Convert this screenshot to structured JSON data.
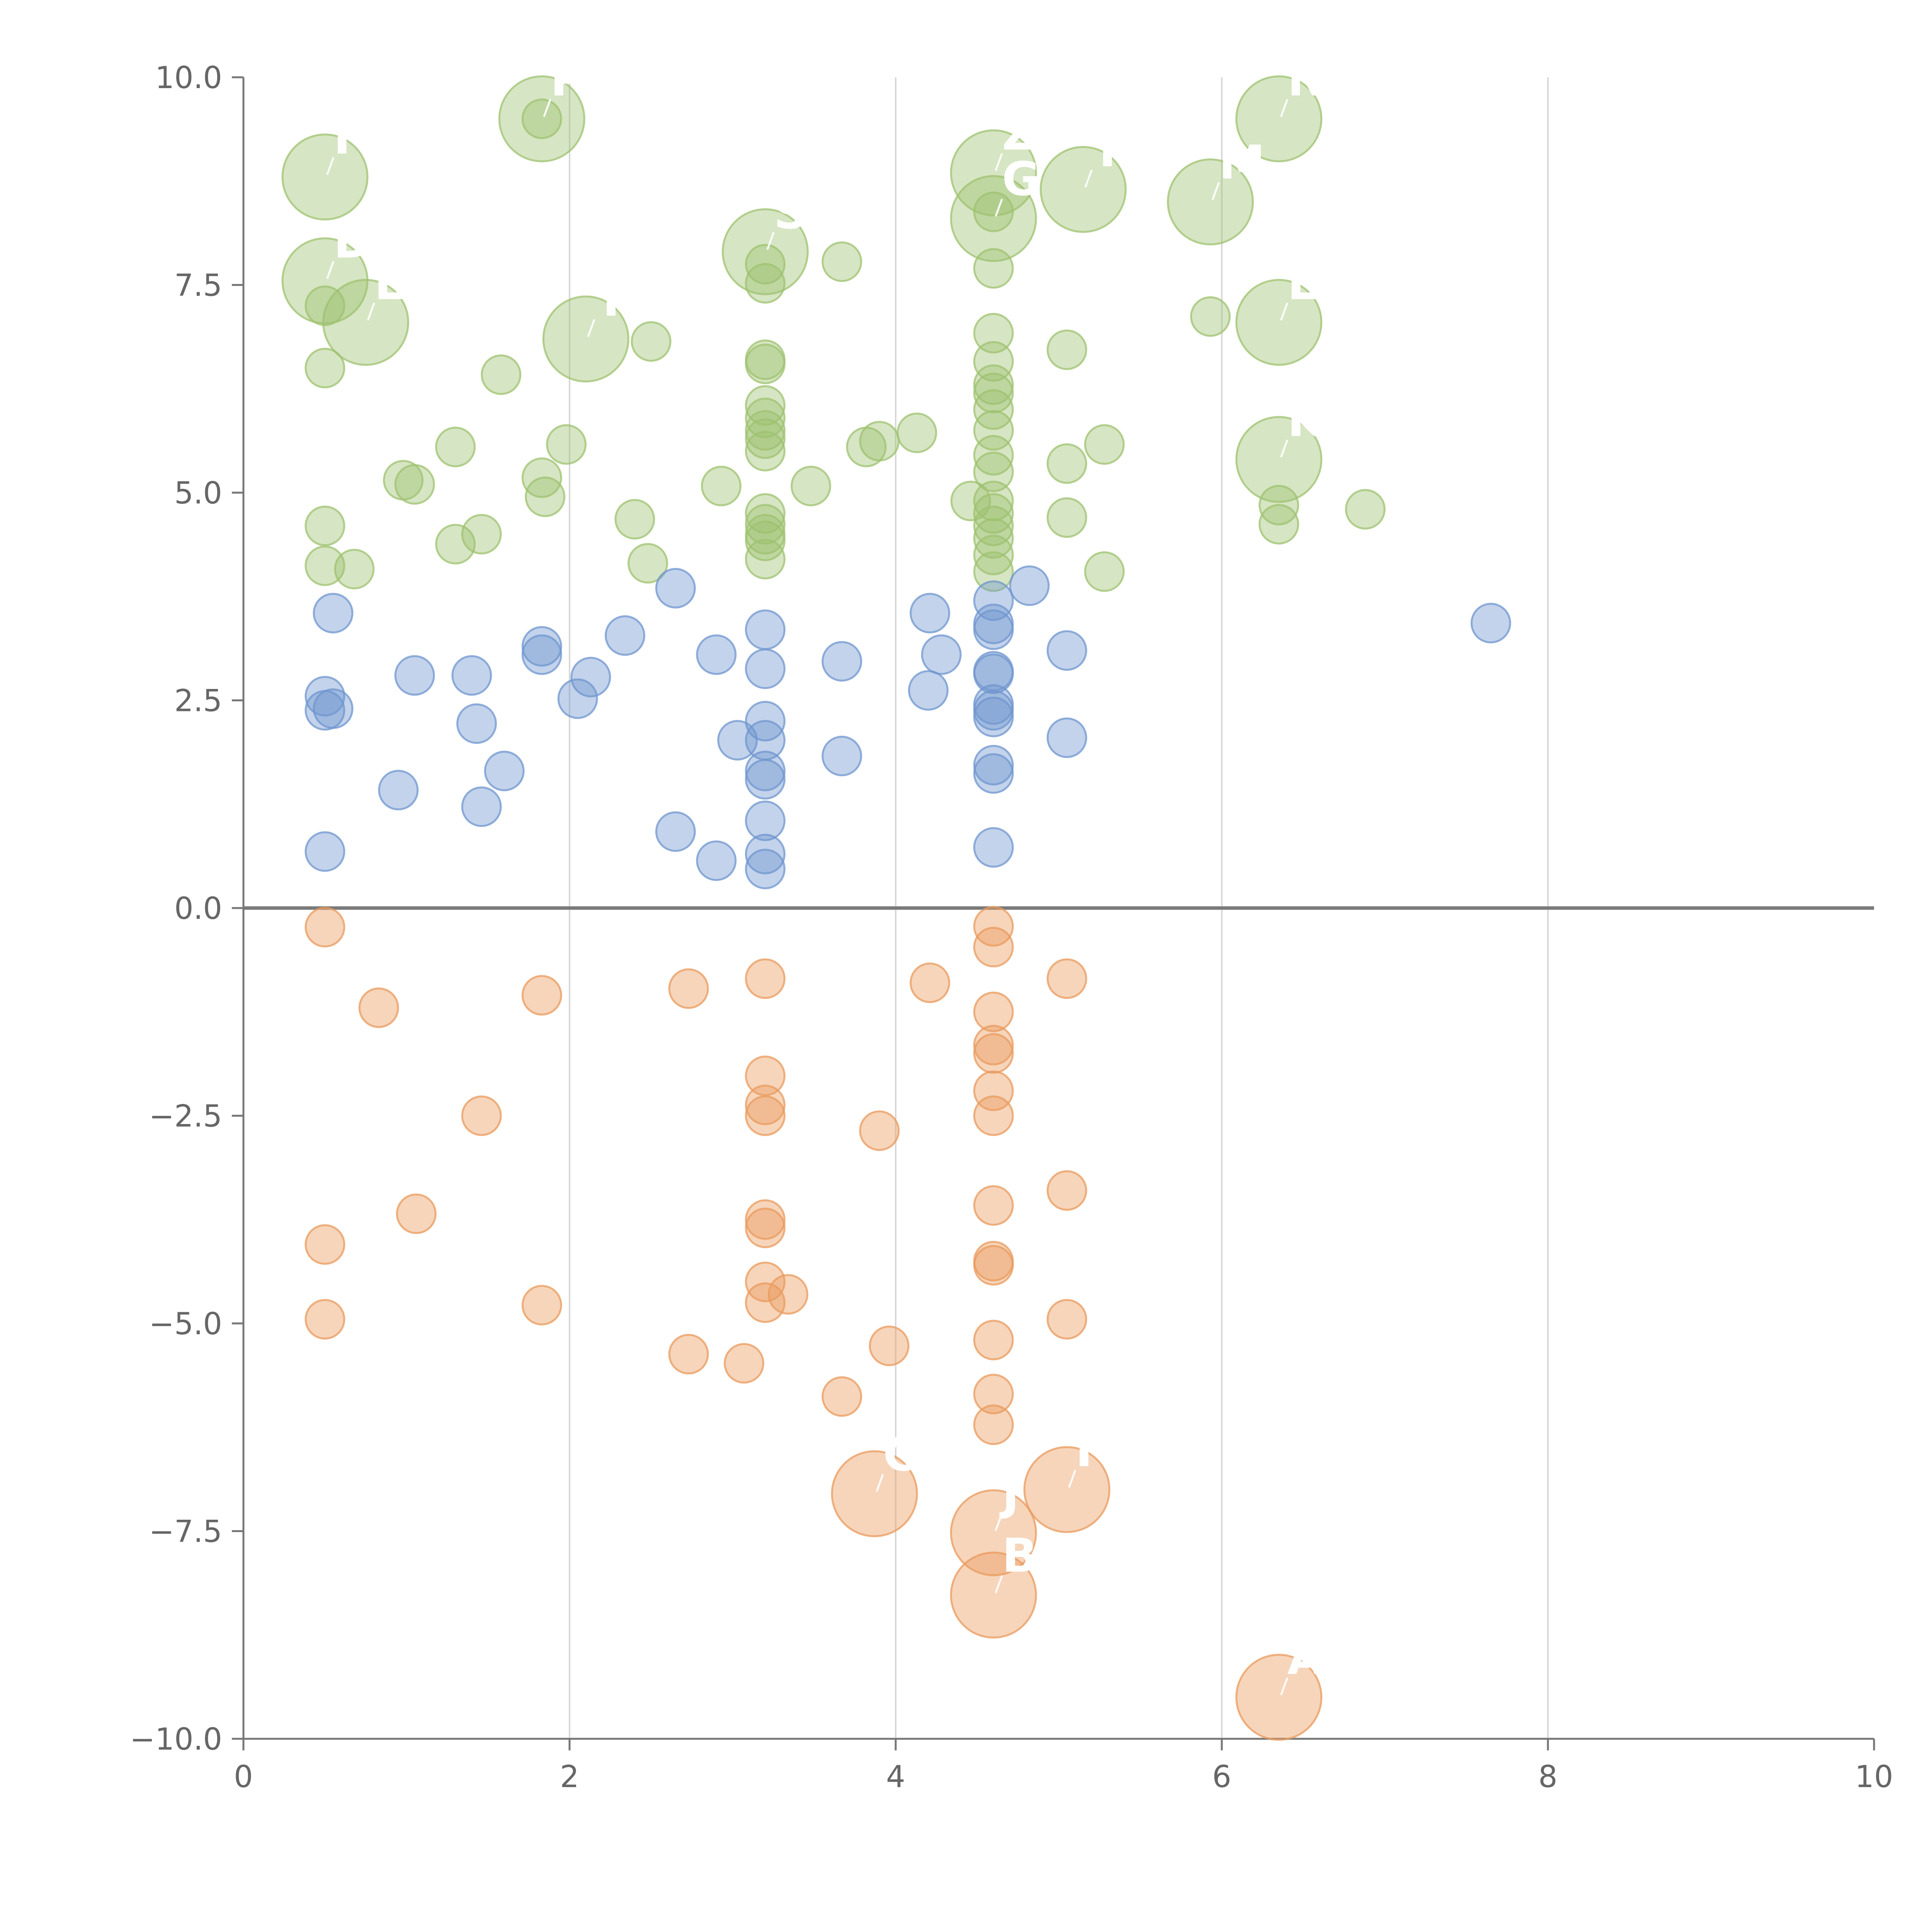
{
  "chart_data": {
    "type": "scatter",
    "title": "",
    "xlabel": "",
    "ylabel": "",
    "xlim": [
      0,
      10
    ],
    "ylim": [
      -10,
      10
    ],
    "x_ticks": [
      0,
      2,
      4,
      6,
      8,
      10
    ],
    "y_ticks": [
      -10,
      -7.5,
      -5,
      -2.5,
      0,
      2.5,
      5,
      7.5,
      10
    ],
    "x_tick_labels": [
      "0",
      "2",
      "4",
      "6",
      "8",
      "10"
    ],
    "y_tick_labels": [
      "−10.0",
      "−7.5",
      "−5.0",
      "−2.5",
      "0.0",
      "2.5",
      "5.0",
      "7.5",
      "10.0"
    ],
    "grid": "vertical",
    "zero_line": 0,
    "legend": "none",
    "colors": {
      "green": "#9dc26f",
      "blue": "#6f95cf",
      "orange": "#e99a5c",
      "text": "#666666",
      "axis": "#777777",
      "grid": "#d8d8d8"
    },
    "series": [
      {
        "name": "green",
        "color": "#9dc26f",
        "points": [
          {
            "x": 0.5,
            "y": 8.8,
            "s": 2.2,
            "label": "F"
          },
          {
            "x": 1.83,
            "y": 9.5,
            "s": 2.2,
            "label": "P"
          },
          {
            "x": 1.83,
            "y": 9.5,
            "s": 1
          },
          {
            "x": 0.5,
            "y": 7.55,
            "s": 2.2,
            "label": "D"
          },
          {
            "x": 0.75,
            "y": 7.05,
            "s": 2.2,
            "label": "E"
          },
          {
            "x": 0.5,
            "y": 7.25,
            "s": 1
          },
          {
            "x": 2.1,
            "y": 6.85,
            "s": 2.2,
            "label": "Y"
          },
          {
            "x": 3.2,
            "y": 7.9,
            "s": 2.2,
            "label": "S"
          },
          {
            "x": 4.6,
            "y": 8.85,
            "s": 2.2,
            "label": "Z"
          },
          {
            "x": 4.6,
            "y": 8.3,
            "s": 2.2,
            "label": "G"
          },
          {
            "x": 5.15,
            "y": 8.65,
            "s": 2.2,
            "label": "T"
          },
          {
            "x": 5.93,
            "y": 8.5,
            "s": 2.2,
            "label": "M"
          },
          {
            "x": 6.35,
            "y": 9.5,
            "s": 2.2,
            "label": "N"
          },
          {
            "x": 6.35,
            "y": 7.05,
            "s": 2.2,
            "label": "L"
          },
          {
            "x": 6.35,
            "y": 5.4,
            "s": 2.2,
            "label": "K"
          },
          {
            "x": 0.5,
            "y": 6.5,
            "s": 1
          },
          {
            "x": 0.5,
            "y": 4.6,
            "s": 1
          },
          {
            "x": 0.5,
            "y": 4.12,
            "s": 1
          },
          {
            "x": 0.68,
            "y": 4.08,
            "s": 1
          },
          {
            "x": 0.98,
            "y": 5.15,
            "s": 1
          },
          {
            "x": 1.05,
            "y": 5.1,
            "s": 1
          },
          {
            "x": 1.3,
            "y": 5.55,
            "s": 1
          },
          {
            "x": 1.3,
            "y": 4.38,
            "s": 1
          },
          {
            "x": 1.46,
            "y": 4.5,
            "s": 1
          },
          {
            "x": 1.58,
            "y": 6.42,
            "s": 1
          },
          {
            "x": 1.83,
            "y": 5.18,
            "s": 1
          },
          {
            "x": 1.85,
            "y": 4.95,
            "s": 1
          },
          {
            "x": 1.98,
            "y": 5.58,
            "s": 1
          },
          {
            "x": 2.4,
            "y": 4.68,
            "s": 1
          },
          {
            "x": 2.48,
            "y": 4.15,
            "s": 1
          },
          {
            "x": 2.5,
            "y": 6.82,
            "s": 1
          },
          {
            "x": 2.93,
            "y": 5.08,
            "s": 1
          },
          {
            "x": 3.2,
            "y": 7.75,
            "s": 1
          },
          {
            "x": 3.2,
            "y": 7.52,
            "s": 1
          },
          {
            "x": 3.2,
            "y": 6.6,
            "s": 1
          },
          {
            "x": 3.2,
            "y": 6.55,
            "s": 1
          },
          {
            "x": 3.2,
            "y": 6.05,
            "s": 1
          },
          {
            "x": 3.2,
            "y": 5.9,
            "s": 1
          },
          {
            "x": 3.2,
            "y": 5.75,
            "s": 1
          },
          {
            "x": 3.2,
            "y": 5.65,
            "s": 1
          },
          {
            "x": 3.2,
            "y": 5.5,
            "s": 1
          },
          {
            "x": 3.2,
            "y": 4.75,
            "s": 1
          },
          {
            "x": 3.2,
            "y": 4.62,
            "s": 1
          },
          {
            "x": 3.2,
            "y": 4.5,
            "s": 1
          },
          {
            "x": 3.2,
            "y": 4.42,
            "s": 1
          },
          {
            "x": 3.2,
            "y": 4.2,
            "s": 1
          },
          {
            "x": 3.48,
            "y": 5.08,
            "s": 1
          },
          {
            "x": 3.67,
            "y": 7.78,
            "s": 1
          },
          {
            "x": 3.82,
            "y": 5.55,
            "s": 1
          },
          {
            "x": 3.9,
            "y": 5.62,
            "s": 1
          },
          {
            "x": 4.13,
            "y": 5.72,
            "s": 1
          },
          {
            "x": 4.46,
            "y": 4.9,
            "s": 1
          },
          {
            "x": 4.6,
            "y": 8.38,
            "s": 1
          },
          {
            "x": 4.6,
            "y": 7.7,
            "s": 1
          },
          {
            "x": 4.6,
            "y": 6.92,
            "s": 1
          },
          {
            "x": 4.6,
            "y": 6.58,
            "s": 1
          },
          {
            "x": 4.6,
            "y": 6.3,
            "s": 1
          },
          {
            "x": 4.6,
            "y": 6.2,
            "s": 1
          },
          {
            "x": 4.6,
            "y": 6.0,
            "s": 1
          },
          {
            "x": 4.6,
            "y": 5.75,
            "s": 1
          },
          {
            "x": 4.6,
            "y": 5.45,
            "s": 1
          },
          {
            "x": 4.6,
            "y": 5.25,
            "s": 1
          },
          {
            "x": 4.6,
            "y": 4.9,
            "s": 1
          },
          {
            "x": 4.6,
            "y": 4.75,
            "s": 1
          },
          {
            "x": 4.6,
            "y": 4.6,
            "s": 1
          },
          {
            "x": 4.6,
            "y": 4.45,
            "s": 1
          },
          {
            "x": 4.6,
            "y": 4.25,
            "s": 1
          },
          {
            "x": 4.6,
            "y": 4.05,
            "s": 1
          },
          {
            "x": 5.05,
            "y": 6.72,
            "s": 1
          },
          {
            "x": 5.05,
            "y": 5.35,
            "s": 1
          },
          {
            "x": 5.05,
            "y": 4.7,
            "s": 1
          },
          {
            "x": 5.28,
            "y": 5.58,
            "s": 1
          },
          {
            "x": 5.28,
            "y": 4.05,
            "s": 1
          },
          {
            "x": 5.93,
            "y": 7.12,
            "s": 1
          },
          {
            "x": 6.35,
            "y": 4.85,
            "s": 1
          },
          {
            "x": 6.35,
            "y": 4.62,
            "s": 1
          },
          {
            "x": 6.88,
            "y": 4.8,
            "s": 1
          }
        ]
      },
      {
        "name": "blue",
        "color": "#6f95cf",
        "points": [
          {
            "x": 0.5,
            "y": 2.55,
            "s": 1
          },
          {
            "x": 0.5,
            "y": 2.38,
            "s": 1
          },
          {
            "x": 0.55,
            "y": 2.4,
            "s": 1
          },
          {
            "x": 0.55,
            "y": 3.55,
            "s": 1
          },
          {
            "x": 0.5,
            "y": 0.68,
            "s": 1
          },
          {
            "x": 0.95,
            "y": 1.42,
            "s": 1
          },
          {
            "x": 1.05,
            "y": 2.8,
            "s": 1
          },
          {
            "x": 1.4,
            "y": 2.8,
            "s": 1
          },
          {
            "x": 1.43,
            "y": 2.22,
            "s": 1
          },
          {
            "x": 1.46,
            "y": 1.22,
            "s": 1
          },
          {
            "x": 1.6,
            "y": 1.65,
            "s": 1
          },
          {
            "x": 1.83,
            "y": 3.15,
            "s": 1
          },
          {
            "x": 1.83,
            "y": 3.05,
            "s": 1
          },
          {
            "x": 2.05,
            "y": 2.52,
            "s": 1
          },
          {
            "x": 2.13,
            "y": 2.78,
            "s": 1
          },
          {
            "x": 2.34,
            "y": 3.28,
            "s": 1
          },
          {
            "x": 2.65,
            "y": 0.92,
            "s": 1
          },
          {
            "x": 2.65,
            "y": 3.85,
            "s": 1
          },
          {
            "x": 2.9,
            "y": 0.57,
            "s": 1
          },
          {
            "x": 2.9,
            "y": 3.05,
            "s": 1
          },
          {
            "x": 3.03,
            "y": 2.02,
            "s": 1
          },
          {
            "x": 3.2,
            "y": 3.35,
            "s": 1
          },
          {
            "x": 3.2,
            "y": 2.88,
            "s": 1
          },
          {
            "x": 3.2,
            "y": 2.25,
            "s": 1
          },
          {
            "x": 3.2,
            "y": 2.02,
            "s": 1
          },
          {
            "x": 3.2,
            "y": 1.65,
            "s": 1
          },
          {
            "x": 3.2,
            "y": 1.55,
            "s": 1
          },
          {
            "x": 3.2,
            "y": 1.05,
            "s": 1
          },
          {
            "x": 3.2,
            "y": 0.65,
            "s": 1
          },
          {
            "x": 3.2,
            "y": 0.47,
            "s": 1
          },
          {
            "x": 3.67,
            "y": 2.97,
            "s": 1
          },
          {
            "x": 3.67,
            "y": 1.83,
            "s": 1
          },
          {
            "x": 4.2,
            "y": 2.62,
            "s": 1
          },
          {
            "x": 4.21,
            "y": 3.55,
            "s": 1
          },
          {
            "x": 4.28,
            "y": 3.05,
            "s": 1
          },
          {
            "x": 4.6,
            "y": 3.7,
            "s": 1
          },
          {
            "x": 4.6,
            "y": 3.42,
            "s": 1
          },
          {
            "x": 4.6,
            "y": 3.35,
            "s": 1
          },
          {
            "x": 4.6,
            "y": 2.85,
            "s": 1
          },
          {
            "x": 4.6,
            "y": 2.82,
            "s": 1
          },
          {
            "x": 4.6,
            "y": 2.45,
            "s": 1
          },
          {
            "x": 4.6,
            "y": 2.38,
            "s": 1
          },
          {
            "x": 4.6,
            "y": 2.3,
            "s": 1
          },
          {
            "x": 4.6,
            "y": 1.72,
            "s": 1
          },
          {
            "x": 4.6,
            "y": 1.62,
            "s": 1
          },
          {
            "x": 4.6,
            "y": 0.73,
            "s": 1
          },
          {
            "x": 4.82,
            "y": 3.88,
            "s": 1
          },
          {
            "x": 5.05,
            "y": 3.1,
            "s": 1
          },
          {
            "x": 5.05,
            "y": 2.05,
            "s": 1
          },
          {
            "x": 7.65,
            "y": 3.43,
            "s": 1
          }
        ]
      },
      {
        "name": "orange",
        "color": "#e99a5c",
        "points": [
          {
            "x": 0.5,
            "y": -0.23,
            "s": 1
          },
          {
            "x": 0.83,
            "y": -1.2,
            "s": 1
          },
          {
            "x": 1.83,
            "y": -1.05,
            "s": 1
          },
          {
            "x": 2.73,
            "y": -0.97,
            "s": 1
          },
          {
            "x": 3.2,
            "y": -0.85,
            "s": 1
          },
          {
            "x": 4.21,
            "y": -0.9,
            "s": 1
          },
          {
            "x": 4.6,
            "y": -0.22,
            "s": 1
          },
          {
            "x": 4.6,
            "y": -0.47,
            "s": 1
          },
          {
            "x": 4.6,
            "y": -1.25,
            "s": 1
          },
          {
            "x": 4.6,
            "y": -1.65,
            "s": 1
          },
          {
            "x": 4.6,
            "y": -1.75,
            "s": 1
          },
          {
            "x": 4.6,
            "y": -2.2,
            "s": 1
          },
          {
            "x": 4.6,
            "y": -2.5,
            "s": 1
          },
          {
            "x": 5.05,
            "y": -0.85,
            "s": 1
          },
          {
            "x": 1.46,
            "y": -2.5,
            "s": 1
          },
          {
            "x": 3.2,
            "y": -2.02,
            "s": 1
          },
          {
            "x": 3.2,
            "y": -2.37,
            "s": 1
          },
          {
            "x": 3.2,
            "y": -2.5,
            "s": 1
          },
          {
            "x": 3.9,
            "y": -2.68,
            "s": 1
          },
          {
            "x": 1.06,
            "y": -3.68,
            "s": 1
          },
          {
            "x": 0.5,
            "y": -4.05,
            "s": 1
          },
          {
            "x": 3.2,
            "y": -3.75,
            "s": 1
          },
          {
            "x": 3.2,
            "y": -3.85,
            "s": 1
          },
          {
            "x": 4.6,
            "y": -3.58,
            "s": 1
          },
          {
            "x": 4.6,
            "y": -4.25,
            "s": 1
          },
          {
            "x": 4.6,
            "y": -4.3,
            "s": 1
          },
          {
            "x": 5.05,
            "y": -3.4,
            "s": 1
          },
          {
            "x": 0.5,
            "y": -4.95,
            "s": 1
          },
          {
            "x": 1.83,
            "y": -4.78,
            "s": 1
          },
          {
            "x": 3.2,
            "y": -4.5,
            "s": 1
          },
          {
            "x": 3.2,
            "y": -4.75,
            "s": 1
          },
          {
            "x": 3.34,
            "y": -4.65,
            "s": 1
          },
          {
            "x": 2.73,
            "y": -5.37,
            "s": 1
          },
          {
            "x": 3.07,
            "y": -5.48,
            "s": 1
          },
          {
            "x": 3.67,
            "y": -5.88,
            "s": 1
          },
          {
            "x": 3.96,
            "y": -5.27,
            "s": 1
          },
          {
            "x": 4.6,
            "y": -5.2,
            "s": 1
          },
          {
            "x": 4.6,
            "y": -5.85,
            "s": 1
          },
          {
            "x": 4.6,
            "y": -6.22,
            "s": 1
          },
          {
            "x": 5.05,
            "y": -4.95,
            "s": 1
          },
          {
            "x": 3.87,
            "y": -7.05,
            "s": 2.2,
            "label": "C"
          },
          {
            "x": 4.6,
            "y": -7.52,
            "s": 2.2,
            "label": "J"
          },
          {
            "x": 4.6,
            "y": -8.27,
            "s": 2.2,
            "label": "B"
          },
          {
            "x": 5.05,
            "y": -7.0,
            "s": 2.2,
            "label": "I"
          },
          {
            "x": 6.35,
            "y": -9.5,
            "s": 2.2,
            "label": "A"
          }
        ]
      }
    ]
  }
}
